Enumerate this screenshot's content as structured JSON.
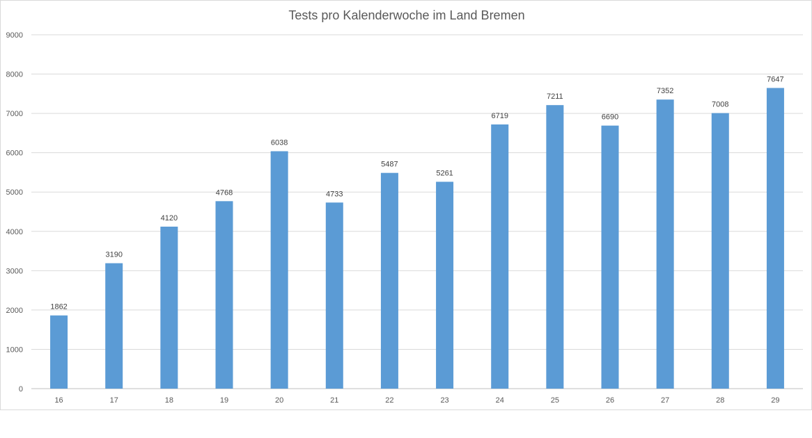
{
  "chart_data": {
    "type": "bar",
    "title": "Tests pro Kalenderwoche im Land Bremen",
    "xlabel": "",
    "ylabel": "",
    "categories": [
      "16",
      "17",
      "18",
      "19",
      "20",
      "21",
      "22",
      "23",
      "24",
      "25",
      "26",
      "27",
      "28",
      "29"
    ],
    "values": [
      1862,
      3190,
      4120,
      4768,
      6038,
      4733,
      5487,
      5261,
      6719,
      7211,
      6690,
      7352,
      7008,
      7647
    ],
    "ylim": [
      0,
      9000
    ],
    "yticks": [
      0,
      1000,
      2000,
      3000,
      4000,
      5000,
      6000,
      7000,
      8000,
      9000
    ],
    "grid": true,
    "legend": "none",
    "bar_color": "#5B9BD5",
    "data_labels": true
  }
}
